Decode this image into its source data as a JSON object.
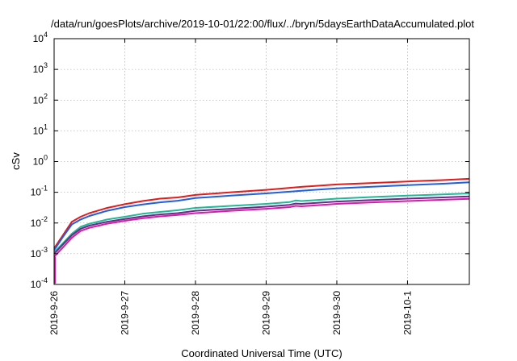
{
  "chart_data": {
    "type": "line",
    "title": "/data/run/goesPlots/archive/2019-10-01/22:00/flux/../bryn/5daysEarthDataAccumulated.plot",
    "xlabel": "Coordinated Universal Time (UTC)",
    "ylabel": "cSv",
    "y_scale": "log",
    "ylim": [
      0.0001,
      10000
    ],
    "xlim": [
      "2019-09-26T00:00",
      "2019-10-01T21:00"
    ],
    "y_ticks": [
      {
        "base": "10",
        "exp": "-4",
        "value": 0.0001
      },
      {
        "base": "10",
        "exp": "-3",
        "value": 0.001
      },
      {
        "base": "10",
        "exp": "-2",
        "value": 0.01
      },
      {
        "base": "10",
        "exp": "-1",
        "value": 0.1
      },
      {
        "base": "10",
        "exp": "0",
        "value": 1
      },
      {
        "base": "10",
        "exp": "1",
        "value": 10
      },
      {
        "base": "10",
        "exp": "2",
        "value": 100
      },
      {
        "base": "10",
        "exp": "3",
        "value": 1000
      },
      {
        "base": "10",
        "exp": "4",
        "value": 10000
      }
    ],
    "x_ticks": [
      {
        "label": "2019-9-26",
        "value": "2019-09-26T00:00"
      },
      {
        "label": "2019-9-27",
        "value": "2019-09-27T00:00"
      },
      {
        "label": "2019-9-28",
        "value": "2019-09-28T00:00"
      },
      {
        "label": "2019-9-29",
        "value": "2019-09-29T00:00"
      },
      {
        "label": "2019-9-30",
        "value": "2019-09-30T00:00"
      },
      {
        "label": "2019-10-1",
        "value": "2019-10-01T00:00"
      }
    ],
    "grid": true,
    "series": [
      {
        "color": "#e41a1c",
        "points": [
          [
            "2019-09-26T00:00",
            0.0015
          ],
          [
            "2019-09-26T03:00",
            0.004
          ],
          [
            "2019-09-26T06:00",
            0.011
          ],
          [
            "2019-09-26T09:00",
            0.016
          ],
          [
            "2019-09-26T12:00",
            0.021
          ],
          [
            "2019-09-26T18:00",
            0.031
          ],
          [
            "2019-09-27T00:00",
            0.041
          ],
          [
            "2019-09-27T06:00",
            0.052
          ],
          [
            "2019-09-27T12:00",
            0.062
          ],
          [
            "2019-09-27T18:00",
            0.068
          ],
          [
            "2019-09-28T00:00",
            0.082
          ],
          [
            "2019-09-28T12:00",
            0.1
          ],
          [
            "2019-09-29T00:00",
            0.12
          ],
          [
            "2019-09-29T12:00",
            0.15
          ],
          [
            "2019-09-30T00:00",
            0.18
          ],
          [
            "2019-09-30T12:00",
            0.2
          ],
          [
            "2019-10-01T00:00",
            0.225
          ],
          [
            "2019-10-01T12:00",
            0.25
          ],
          [
            "2019-10-01T21:00",
            0.275
          ]
        ]
      },
      {
        "color": "#1f5fe0",
        "points": [
          [
            "2019-09-26T00:00",
            0.0013
          ],
          [
            "2019-09-26T03:00",
            0.0035
          ],
          [
            "2019-09-26T06:00",
            0.009
          ],
          [
            "2019-09-26T09:00",
            0.013
          ],
          [
            "2019-09-26T12:00",
            0.017
          ],
          [
            "2019-09-26T18:00",
            0.025
          ],
          [
            "2019-09-27T00:00",
            0.033
          ],
          [
            "2019-09-27T06:00",
            0.04
          ],
          [
            "2019-09-27T12:00",
            0.047
          ],
          [
            "2019-09-27T18:00",
            0.053
          ],
          [
            "2019-09-28T00:00",
            0.065
          ],
          [
            "2019-09-28T12:00",
            0.078
          ],
          [
            "2019-09-29T00:00",
            0.092
          ],
          [
            "2019-09-29T12:00",
            0.112
          ],
          [
            "2019-09-30T00:00",
            0.135
          ],
          [
            "2019-09-30T12:00",
            0.152
          ],
          [
            "2019-10-01T00:00",
            0.17
          ],
          [
            "2019-10-01T12:00",
            0.19
          ],
          [
            "2019-10-01T21:00",
            0.21
          ]
        ]
      },
      {
        "color": "#1fb89a",
        "points": [
          [
            "2019-09-26T00:00",
            0.0011
          ],
          [
            "2019-09-26T03:00",
            0.0022
          ],
          [
            "2019-09-26T06:00",
            0.0045
          ],
          [
            "2019-09-26T09:00",
            0.0075
          ],
          [
            "2019-09-26T12:00",
            0.0095
          ],
          [
            "2019-09-26T18:00",
            0.013
          ],
          [
            "2019-09-27T00:00",
            0.016
          ],
          [
            "2019-09-27T06:00",
            0.02
          ],
          [
            "2019-09-27T12:00",
            0.023
          ],
          [
            "2019-09-27T18:00",
            0.026
          ],
          [
            "2019-09-28T00:00",
            0.031
          ],
          [
            "2019-09-28T12:00",
            0.036
          ],
          [
            "2019-09-29T00:00",
            0.042
          ],
          [
            "2019-09-29T08:00",
            0.048
          ],
          [
            "2019-09-29T10:00",
            0.054
          ],
          [
            "2019-09-29T12:00",
            0.052
          ],
          [
            "2019-09-30T00:00",
            0.062
          ],
          [
            "2019-09-30T12:00",
            0.07
          ],
          [
            "2019-10-01T00:00",
            0.078
          ],
          [
            "2019-10-01T12:00",
            0.085
          ],
          [
            "2019-10-01T21:00",
            0.092
          ]
        ]
      },
      {
        "color": "#6b2a8a",
        "points": [
          [
            "2019-09-26T00:00",
            0.001
          ],
          [
            "2019-09-26T03:00",
            0.002
          ],
          [
            "2019-09-26T06:00",
            0.004
          ],
          [
            "2019-09-26T09:00",
            0.0065
          ],
          [
            "2019-09-26T12:00",
            0.0082
          ],
          [
            "2019-09-26T18:00",
            0.011
          ],
          [
            "2019-09-27T00:00",
            0.0135
          ],
          [
            "2019-09-27T06:00",
            0.0165
          ],
          [
            "2019-09-27T12:00",
            0.019
          ],
          [
            "2019-09-27T18:00",
            0.021
          ],
          [
            "2019-09-28T00:00",
            0.025
          ],
          [
            "2019-09-28T12:00",
            0.029
          ],
          [
            "2019-09-29T00:00",
            0.034
          ],
          [
            "2019-09-29T08:00",
            0.039
          ],
          [
            "2019-09-29T10:00",
            0.043
          ],
          [
            "2019-09-29T12:00",
            0.042
          ],
          [
            "2019-09-30T00:00",
            0.05
          ],
          [
            "2019-09-30T12:00",
            0.056
          ],
          [
            "2019-10-01T00:00",
            0.062
          ],
          [
            "2019-10-01T12:00",
            0.068
          ],
          [
            "2019-10-01T21:00",
            0.073
          ]
        ]
      },
      {
        "color": "#d91aa6",
        "points": [
          [
            "2019-09-26T00:00",
            0.0008
          ],
          [
            "2019-09-26T03:00",
            0.0016
          ],
          [
            "2019-09-26T06:00",
            0.0033
          ],
          [
            "2019-09-26T09:00",
            0.0055
          ],
          [
            "2019-09-26T12:00",
            0.007
          ],
          [
            "2019-09-26T18:00",
            0.0095
          ],
          [
            "2019-09-27T00:00",
            0.0118
          ],
          [
            "2019-09-27T06:00",
            0.0142
          ],
          [
            "2019-09-27T12:00",
            0.0165
          ],
          [
            "2019-09-27T18:00",
            0.0182
          ],
          [
            "2019-09-28T00:00",
            0.021
          ],
          [
            "2019-09-28T12:00",
            0.025
          ],
          [
            "2019-09-29T00:00",
            0.029
          ],
          [
            "2019-09-29T08:00",
            0.033
          ],
          [
            "2019-09-29T10:00",
            0.036
          ],
          [
            "2019-09-29T12:00",
            0.035
          ],
          [
            "2019-09-30T00:00",
            0.042
          ],
          [
            "2019-09-30T12:00",
            0.047
          ],
          [
            "2019-10-01T00:00",
            0.052
          ],
          [
            "2019-10-01T12:00",
            0.057
          ],
          [
            "2019-10-01T21:00",
            0.061
          ]
        ]
      }
    ]
  }
}
